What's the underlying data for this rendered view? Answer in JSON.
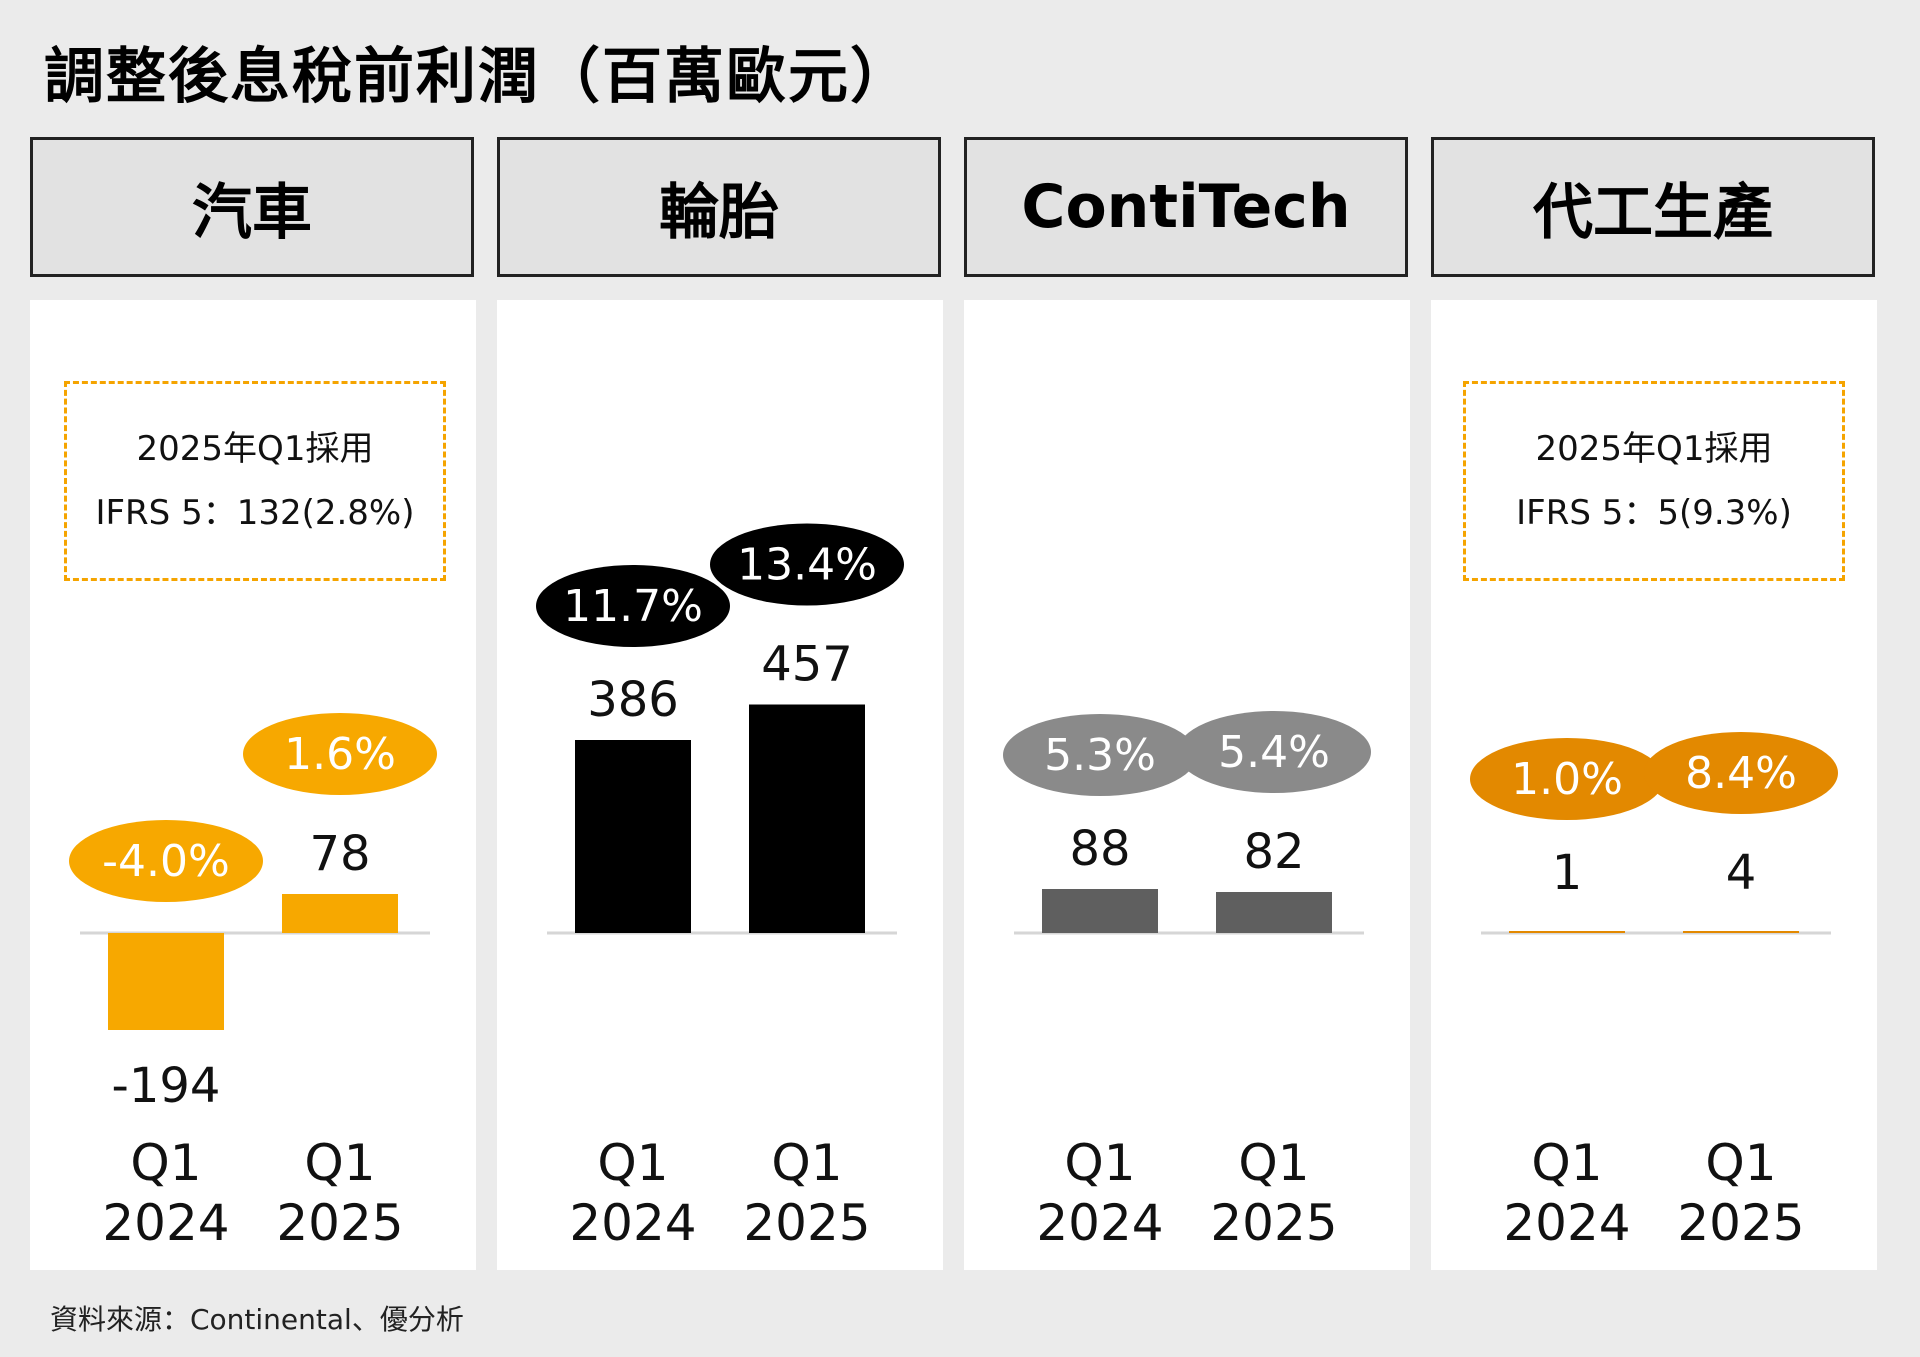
{
  "title": "調整後息稅前利潤（百萬歐元）",
  "source": "資料來源：Continental、優分析",
  "note_auto": {
    "line1": "2025年Q1採用",
    "line2": "IFRS 5：132(2.8%)"
  },
  "note_contract": {
    "line1": "2025年Q1採用",
    "line2": "IFRS 5：5(9.3%)"
  },
  "colors": {
    "automotive": "#f7a800",
    "tires": "#000000",
    "contitech": "#5f5f5f",
    "contitech_badge": "#8a8a8a",
    "contract": "#e38900"
  },
  "chart_data": [
    {
      "type": "bar",
      "title": "汽車",
      "categories": [
        [
          "Q1",
          "2024"
        ],
        [
          "Q1",
          "2025"
        ]
      ],
      "values": [
        -194,
        78
      ],
      "value_labels": [
        "-194",
        "78"
      ],
      "margins": [
        "-4.0%",
        "1.6%"
      ],
      "color_key": "automotive"
    },
    {
      "type": "bar",
      "title": "輪胎",
      "categories": [
        [
          "Q1",
          "2024"
        ],
        [
          "Q1",
          "2025"
        ]
      ],
      "values": [
        386,
        457
      ],
      "value_labels": [
        "386",
        "457"
      ],
      "margins": [
        "11.7%",
        "13.4%"
      ],
      "color_key": "tires"
    },
    {
      "type": "bar",
      "title": "ContiTech",
      "categories": [
        [
          "Q1",
          "2024"
        ],
        [
          "Q1",
          "2025"
        ]
      ],
      "values": [
        88,
        82
      ],
      "value_labels": [
        "88",
        "82"
      ],
      "margins": [
        "5.3%",
        "5.4%"
      ],
      "color_key": "contitech"
    },
    {
      "type": "bar",
      "title": "代工生產",
      "categories": [
        [
          "Q1",
          "2024"
        ],
        [
          "Q1",
          "2025"
        ]
      ],
      "values": [
        1,
        4
      ],
      "value_labels": [
        "1",
        "4"
      ],
      "margins": [
        "1.0%",
        "8.4%"
      ],
      "color_key": "contract"
    }
  ]
}
